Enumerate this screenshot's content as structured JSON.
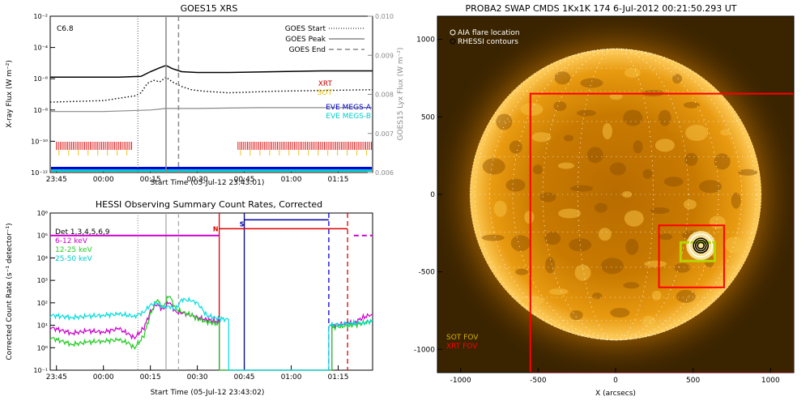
{
  "chart_data": [
    {
      "type": "line",
      "title": "GOES15 XRS",
      "xlabel": "Start Time (05-Jul-12 23:43:01)",
      "ylabel": "X-ray Flux (W m⁻²)",
      "ylabel_right": "GOES15 Lyx Flux (W m⁻²)",
      "x_ticks": [
        "23:45",
        "00:00",
        "00:15",
        "00:30",
        "00:45",
        "01:00",
        "01:15"
      ],
      "x_tick_minutes": [
        -15,
        0,
        15,
        30,
        45,
        60,
        75
      ],
      "xlim": [
        -17,
        86
      ],
      "y_log": true,
      "ylim_exp": [
        -12,
        -2
      ],
      "y_ticks": [
        "10⁻¹²",
        "10⁻¹⁰",
        "10⁻⁸",
        "10⁻⁶",
        "10⁻⁴",
        "10⁻²"
      ],
      "y_tick_exps": [
        -12,
        -10,
        -8,
        -6,
        -4,
        -2
      ],
      "y2_ticks": [
        "0.006",
        "0.007",
        "0.008",
        "0.009",
        "0.010"
      ],
      "y2_tick_vals": [
        0.006,
        0.007,
        0.008,
        0.009,
        0.01
      ],
      "ylim2": [
        0.006,
        0.01
      ],
      "class_label": "C6.8",
      "vlines": [
        {
          "name": "GOES Start",
          "minute": 11,
          "style": "dotted"
        },
        {
          "name": "GOES Peak",
          "minute": 20,
          "style": "solid"
        },
        {
          "name": "GOES End",
          "minute": 24,
          "style": "dashed"
        }
      ],
      "series": [
        {
          "kind": "long",
          "x": [
            -17,
            5,
            12,
            15,
            18,
            20,
            22,
            25,
            30,
            40,
            55,
            70,
            86
          ],
          "y_exp": [
            -5.9,
            -5.9,
            -5.85,
            -5.55,
            -5.3,
            -5.15,
            -5.35,
            -5.55,
            -5.6,
            -5.6,
            -5.55,
            -5.5,
            -5.5
          ]
        },
        {
          "kind": "short",
          "x": [
            -17,
            0,
            10,
            12,
            14,
            16,
            18,
            20,
            22,
            25,
            28,
            32,
            40,
            55,
            70,
            86
          ],
          "y_exp": [
            -7.5,
            -7.4,
            -7.1,
            -6.9,
            -6.3,
            -6.1,
            -6.2,
            -5.9,
            -6.2,
            -6.5,
            -6.7,
            -6.8,
            -6.9,
            -6.8,
            -6.75,
            -6.7
          ]
        },
        {
          "kind": "eve",
          "x": [
            -17,
            0,
            15,
            20,
            30,
            50,
            86
          ],
          "y_exp": [
            -8.1,
            -8.1,
            -8.0,
            -7.9,
            -7.9,
            -7.85,
            -7.85
          ]
        }
      ],
      "legend": [
        "GOES Start",
        "GOES Peak",
        "GOES End"
      ],
      "instrument_labels": [
        {
          "text": "XRT",
          "color": "#cc0000"
        },
        {
          "text": "SOT",
          "color": "#e6c000"
        },
        {
          "text": "EVE MEGS-A",
          "color": "#0000cc"
        },
        {
          "text": "EVE MEGS-B",
          "color": "#00cccc"
        }
      ],
      "obs_bands": [
        [
          -15,
          9
        ],
        [
          43,
          86
        ]
      ]
    },
    {
      "type": "line",
      "title": "HESSI Observing Summary Count Rates, Corrected",
      "xlabel": "Start Time (05-Jul-12 23:43:02)",
      "ylabel": "Corrected Count Rate (s⁻¹ detector⁻¹)",
      "x_ticks": [
        "23:45",
        "00:00",
        "00:15",
        "00:30",
        "00:45",
        "01:00",
        "01:15"
      ],
      "x_tick_minutes": [
        -15,
        0,
        15,
        30,
        45,
        60,
        75
      ],
      "xlim": [
        -17,
        86
      ],
      "y_log": true,
      "ylim_exp": [
        -1,
        6
      ],
      "y_ticks": [
        "10⁻¹",
        "10⁰",
        "10¹",
        "10²",
        "10³",
        "10⁴",
        "10⁵",
        "10⁶"
      ],
      "y_tick_exps": [
        -1,
        0,
        1,
        2,
        3,
        4,
        5,
        6
      ],
      "detectors_label": "Det 1,3,4,5,6,9",
      "vlines": [
        {
          "minute": 11,
          "style": "dotted",
          "color": "#888888"
        },
        {
          "minute": 20,
          "style": "solid",
          "color": "#aaaaaa"
        },
        {
          "minute": 24,
          "style": "dashed",
          "color": "#aaaaaa"
        },
        {
          "minute": 37,
          "style": "solid",
          "color": "#dd0000"
        },
        {
          "minute": 45,
          "style": "solid",
          "color": "#000088"
        },
        {
          "minute": 72,
          "style": "dashed",
          "color": "#0000dd"
        },
        {
          "minute": 78,
          "style": "dashed",
          "color": "#dd0000"
        }
      ],
      "markers": [
        {
          "text": "N",
          "minute": 35,
          "color": "#dd0000"
        },
        {
          "text": "S",
          "minute": 43.5,
          "color": "#0000aa"
        }
      ],
      "series": [
        {
          "name": "6-12 keV",
          "color": "#cc00cc",
          "x": [
            -17,
            -10,
            -5,
            0,
            5,
            8,
            10,
            13,
            15,
            17,
            19,
            21,
            23,
            25,
            28,
            30,
            33,
            35,
            37,
            37.01,
            73,
            73.01,
            76,
            80,
            83,
            86
          ],
          "y_exp": [
            0.9,
            0.65,
            0.75,
            0.7,
            0.85,
            0.6,
            0.45,
            0.9,
            1.6,
            1.95,
            1.7,
            2.05,
            1.6,
            1.55,
            1.45,
            1.35,
            1.25,
            1.2,
            1.15,
            -1,
            -1,
            1.0,
            1.05,
            1.1,
            1.35,
            1.5
          ]
        },
        {
          "name": "12-25 keV",
          "color": "#22cc22",
          "x": [
            -17,
            -10,
            -5,
            0,
            5,
            8,
            10,
            13,
            15,
            17,
            19,
            21,
            23,
            25,
            28,
            30,
            33,
            35,
            37,
            37.01,
            73,
            73.01,
            76,
            80,
            83,
            86
          ],
          "y_exp": [
            0.45,
            0.15,
            0.25,
            0.3,
            0.35,
            0.2,
            0.0,
            0.55,
            1.5,
            2.15,
            1.8,
            2.35,
            1.75,
            1.6,
            1.45,
            1.3,
            1.15,
            1.1,
            1.05,
            -1,
            -1,
            0.9,
            0.95,
            1.0,
            1.1,
            1.2
          ]
        },
        {
          "name": "25-50 keV",
          "color": "#00dddd",
          "x": [
            -17,
            -10,
            -5,
            0,
            5,
            10,
            13,
            15,
            17,
            19,
            21,
            23,
            25,
            28,
            30,
            33,
            35,
            37,
            37.01,
            40,
            40.01,
            72,
            72.01,
            76,
            80,
            83,
            86
          ],
          "y_exp": [
            1.45,
            1.35,
            1.4,
            1.45,
            1.5,
            1.4,
            1.6,
            1.9,
            2.0,
            1.8,
            1.85,
            1.7,
            2.15,
            2.1,
            2.0,
            1.45,
            1.35,
            1.3,
            1.3,
            1.25,
            -1,
            -1,
            1.0,
            1.05,
            1.1,
            1.1,
            1.2
          ]
        }
      ],
      "legend": [
        "Det 1,3,4,5,6,9",
        "6-12 keV",
        "12-25 keV",
        "25-50 keV"
      ]
    },
    {
      "type": "heatmap",
      "title": "PROBA2 SWAP CMDS 1Kx1K 174   6-Jul-2012 00:21:50.293 UT",
      "xlabel": "X (arcsecs)",
      "ylabel": "",
      "x_ticks": [
        "-1000",
        "-500",
        "0",
        "500",
        "1000"
      ],
      "x_tick_vals": [
        -1000,
        -500,
        0,
        500,
        1000
      ],
      "y_ticks": [
        "-1000",
        "-500",
        "0",
        "500",
        "1000"
      ],
      "y_tick_vals": [
        -1000,
        -500,
        0,
        500,
        1000
      ],
      "xlim": [
        -1150,
        1150
      ],
      "ylim": [
        -1150,
        1150
      ],
      "solar_radius": 940,
      "flare_location": [
        550,
        -330
      ],
      "legend": [
        "AIA flare location",
        "RHESSI contours"
      ],
      "fov_labels": [
        {
          "text": "SOT FOV",
          "color": "#d4b000"
        },
        {
          "text": "XRT FOV",
          "color": "#ff0000"
        }
      ],
      "xrt_fov_large": {
        "x0": -550,
        "x1": 1150,
        "y0": -1150,
        "y1": 650
      },
      "xrt_fov_small": {
        "x0": 280,
        "x1": 700,
        "y0": -600,
        "y1": -200
      },
      "sot_fov": {
        "x0": 420,
        "x1": 640,
        "y0": -430,
        "y1": -310
      },
      "colors": {
        "sun": "#e89a00",
        "disk_dark": "#a05a00",
        "xrt": "#ff0000",
        "sot": "#b8d400"
      }
    }
  ]
}
